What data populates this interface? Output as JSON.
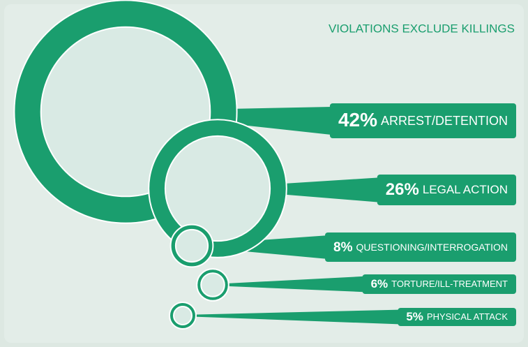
{
  "chart_data": {
    "type": "bubble",
    "title": "VIOLATIONS EXCLUDE KILLINGS",
    "categories": [
      "ARREST/DETENTION",
      "LEGAL ACTION",
      "QUESTIONING/INTERROGATION",
      "TORTURE/ILL-TREATMENT",
      "PHYSICAL ATTACK"
    ],
    "values": [
      42,
      26,
      8,
      6,
      5
    ],
    "value_labels": [
      "42%",
      "26%",
      "8%",
      "6%",
      "5%"
    ],
    "color": "#1a9e6e"
  }
}
